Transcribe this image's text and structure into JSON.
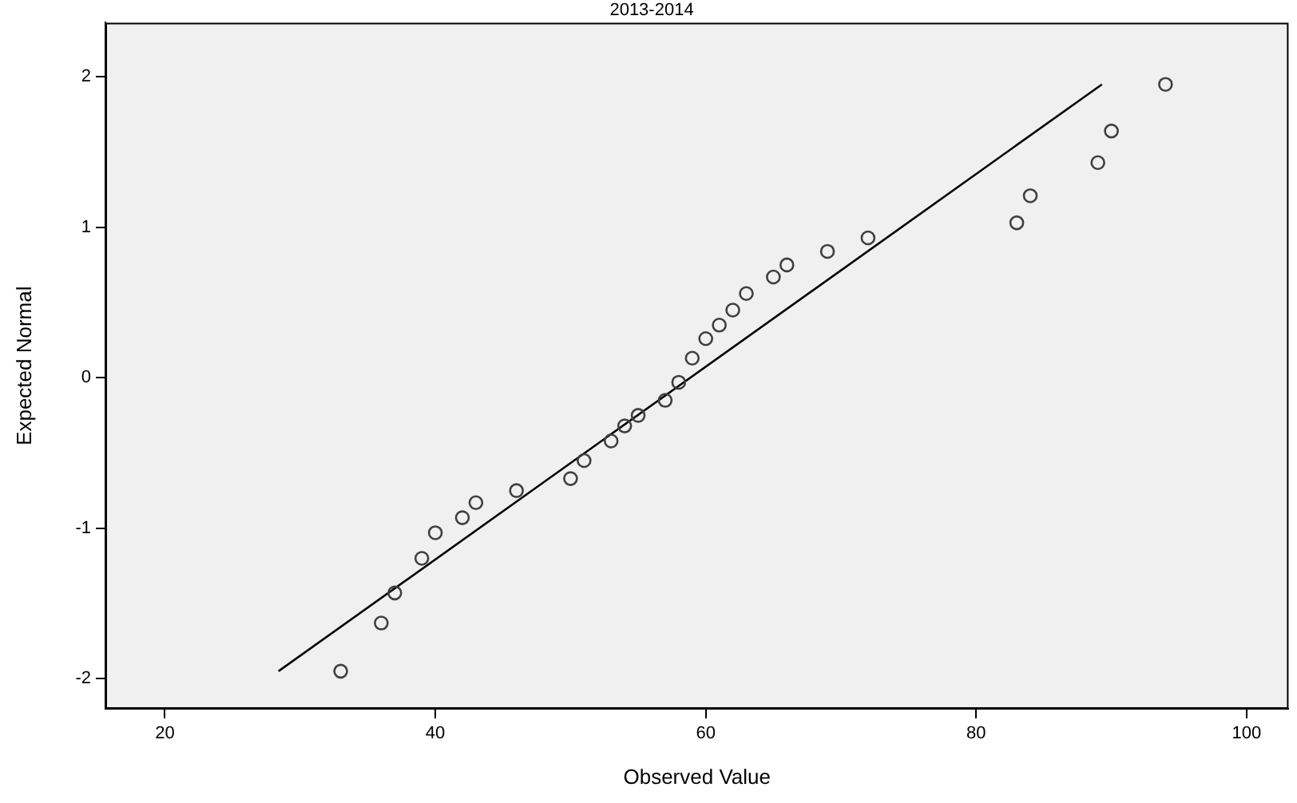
{
  "chart_data": {
    "type": "scatter",
    "title": "2013-2014",
    "xlabel": "Observed Value",
    "ylabel": "Expected Normal",
    "xlim": [
      15.6,
      103.1
    ],
    "ylim": [
      -2.2,
      2.36
    ],
    "xticks": [
      20,
      40,
      60,
      80,
      100
    ],
    "yticks": [
      -2,
      -1,
      0,
      1,
      2
    ],
    "grid": false,
    "legend": false,
    "series": [
      {
        "type": "scatter",
        "color": "#404040",
        "marker": "circle",
        "x": [
          33,
          36,
          37,
          39,
          40,
          42,
          43,
          46,
          50,
          51,
          53,
          54,
          55,
          57,
          58,
          59,
          60,
          61,
          62,
          63,
          65,
          66,
          69,
          72,
          83,
          84,
          89,
          90,
          94
        ],
        "values": [
          -1.95,
          -1.63,
          -1.43,
          -1.2,
          -1.03,
          -0.93,
          -0.83,
          -0.75,
          -0.67,
          -0.55,
          -0.42,
          -0.32,
          -0.25,
          -0.15,
          -0.03,
          0.13,
          0.26,
          0.35,
          0.45,
          0.56,
          0.67,
          0.75,
          0.84,
          0.93,
          1.03,
          1.21,
          1.43,
          1.64,
          1.95
        ]
      },
      {
        "type": "line",
        "color": "#000000",
        "marker": "none",
        "x": [
          28.4,
          89.3
        ],
        "values": [
          -1.95,
          1.95
        ]
      }
    ]
  }
}
